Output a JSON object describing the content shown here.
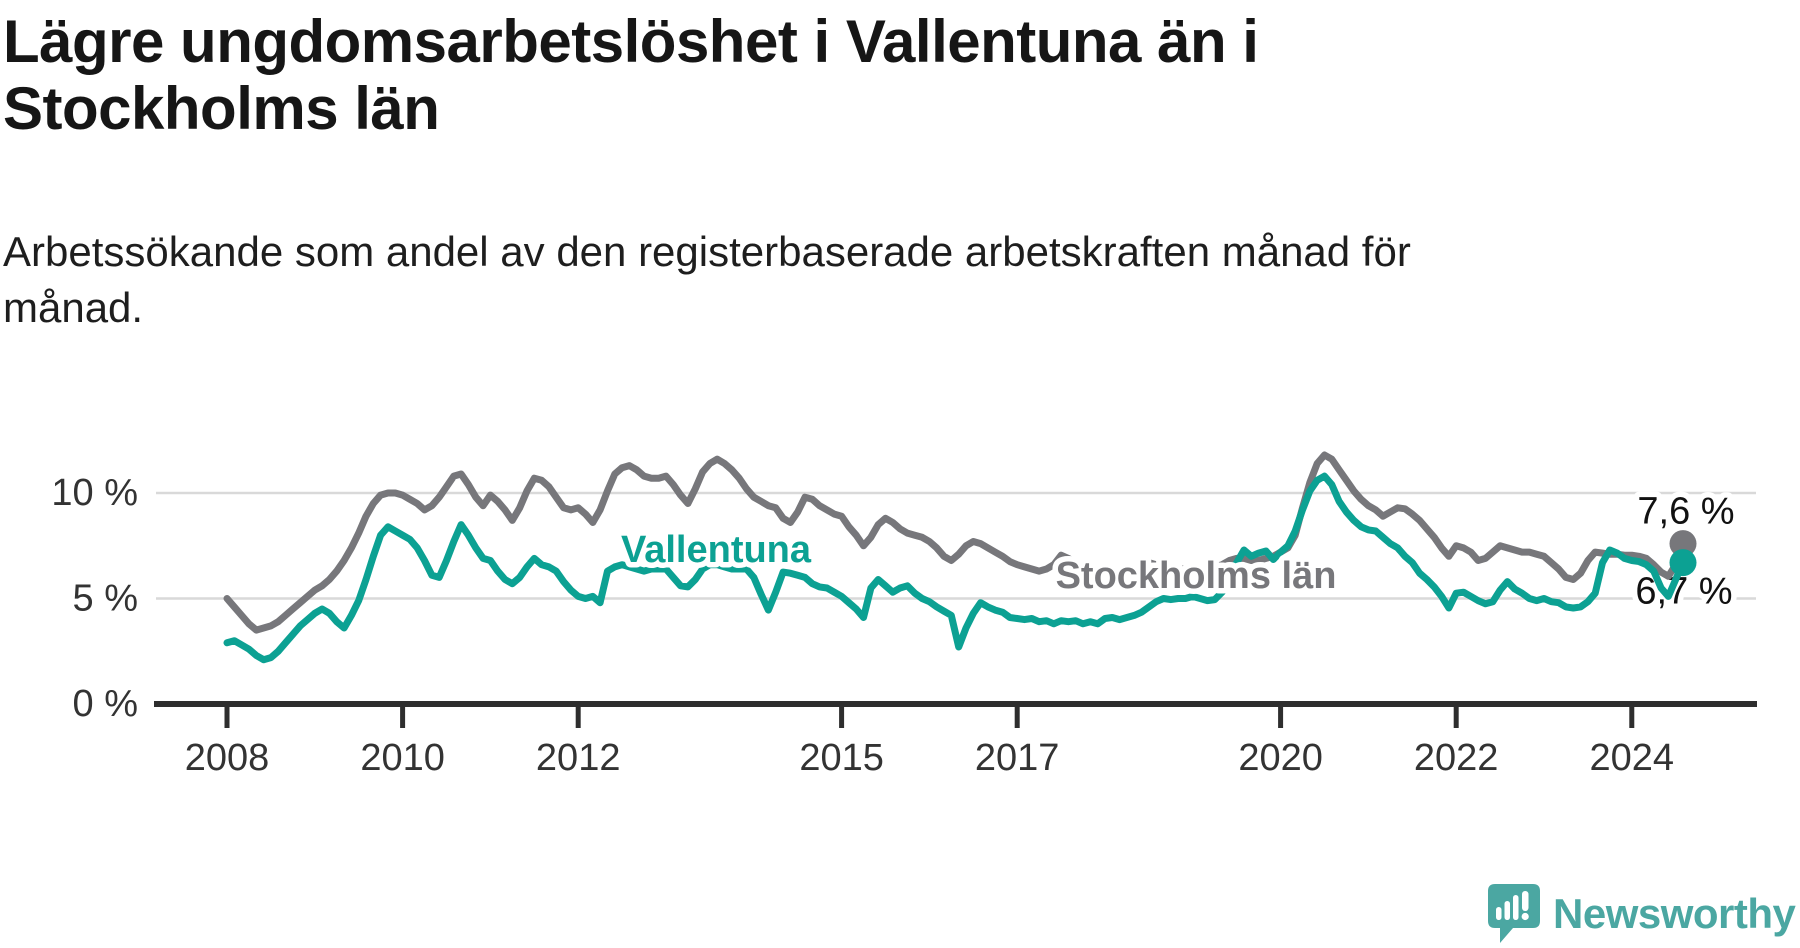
{
  "header": {
    "title": "Lägre ungdomsarbetslöshet i Vallentuna än i\nStockholms län",
    "subtitle": "Arbetssökande som andel av den registerbaserade arbetskraften månad för\nmånad."
  },
  "footer": {
    "brand": "Newsworthy"
  },
  "colors": {
    "vallentuna": "#0ca193",
    "stockholm": "#77777b",
    "gridline": "#d9d9d9",
    "axis": "#2e2e2e",
    "axis_label": "#333333",
    "value_label": "#111111",
    "logo_teal": "#4ba7a2"
  },
  "chart_data": {
    "type": "line",
    "title": "Lägre ungdomsarbetslöshet i Vallentuna än i Stockholms län",
    "subtitle": "Arbetssökande som andel av den registerbaserade arbetskraften månad för månad.",
    "unit": "%",
    "frequency": "monthly",
    "x_start": "2008-01",
    "x_end": "2024-08",
    "xlabel": "",
    "ylabel": "",
    "ylim": [
      0,
      12.5
    ],
    "grid": "horizontal",
    "legend": "inline-labels",
    "x_ticks": [
      {
        "year": 2008,
        "label": "2008"
      },
      {
        "year": 2010,
        "label": "2010"
      },
      {
        "year": 2012,
        "label": "2012"
      },
      {
        "year": 2015,
        "label": "2015"
      },
      {
        "year": 2017,
        "label": "2017"
      },
      {
        "year": 2020,
        "label": "2020"
      },
      {
        "year": 2022,
        "label": "2022"
      },
      {
        "year": 2024,
        "label": "2024"
      }
    ],
    "y_ticks": [
      {
        "value": 0,
        "label": "0 %"
      },
      {
        "value": 5,
        "label": "5 %"
      },
      {
        "value": 10,
        "label": "10 %"
      }
    ],
    "series": [
      {
        "name": "Stockholms län",
        "color": "#77777b",
        "end_value": 7.6,
        "end_label": "7,6 %",
        "end_label_position": "above",
        "values": [
          5.0,
          4.6,
          4.2,
          3.8,
          3.5,
          3.6,
          3.7,
          3.9,
          4.2,
          4.5,
          4.8,
          5.1,
          5.4,
          5.6,
          5.9,
          6.3,
          6.8,
          7.4,
          8.1,
          8.9,
          9.5,
          9.9,
          10.0,
          10.0,
          9.9,
          9.7,
          9.5,
          9.2,
          9.4,
          9.8,
          10.3,
          10.8,
          10.9,
          10.4,
          9.8,
          9.4,
          9.9,
          9.6,
          9.2,
          8.7,
          9.3,
          10.1,
          10.7,
          10.6,
          10.3,
          9.8,
          9.3,
          9.2,
          9.3,
          9.0,
          8.6,
          9.2,
          10.1,
          10.9,
          11.2,
          11.3,
          11.1,
          10.8,
          10.7,
          10.7,
          10.8,
          10.4,
          9.9,
          9.5,
          10.2,
          11.0,
          11.4,
          11.6,
          11.4,
          11.1,
          10.7,
          10.2,
          9.8,
          9.6,
          9.4,
          9.3,
          8.8,
          8.6,
          9.1,
          9.8,
          9.7,
          9.4,
          9.2,
          9.0,
          8.9,
          8.4,
          8.0,
          7.5,
          7.9,
          8.5,
          8.8,
          8.6,
          8.3,
          8.1,
          8.0,
          7.9,
          7.7,
          7.4,
          7.0,
          6.8,
          7.1,
          7.5,
          7.7,
          7.6,
          7.4,
          7.2,
          7.0,
          6.75,
          6.6,
          6.5,
          6.4,
          6.3,
          6.4,
          6.6,
          7.05,
          6.9,
          6.7,
          6.5,
          6.4,
          6.4,
          6.4,
          6.3,
          6.2,
          6.2,
          6.3,
          6.5,
          6.7,
          6.6,
          6.5,
          6.4,
          6.4,
          6.4,
          6.4,
          6.4,
          6.4,
          6.5,
          6.6,
          6.8,
          6.9,
          6.9,
          6.8,
          6.8,
          6.9,
          7.0,
          7.2,
          7.4,
          8.0,
          9.3,
          10.5,
          11.4,
          11.8,
          11.6,
          11.1,
          10.6,
          10.1,
          9.7,
          9.4,
          9.2,
          8.9,
          9.1,
          9.3,
          9.25,
          9.0,
          8.7,
          8.3,
          7.9,
          7.4,
          7.0,
          7.5,
          7.4,
          7.2,
          6.8,
          6.9,
          7.2,
          7.5,
          7.4,
          7.3,
          7.2,
          7.2,
          7.1,
          7.0,
          6.7,
          6.4,
          6.0,
          5.9,
          6.2,
          6.8,
          7.2,
          7.15,
          7.1,
          7.1,
          7.05,
          7.05,
          7.0,
          6.9,
          6.6,
          6.25,
          6.05,
          6.6,
          7.6
        ]
      },
      {
        "name": "Vallentuna",
        "color": "#0ca193",
        "end_value": 6.7,
        "end_label": "6,7 %",
        "end_label_position": "below",
        "values": [
          2.9,
          3.0,
          2.8,
          2.6,
          2.3,
          2.1,
          2.2,
          2.5,
          2.9,
          3.3,
          3.7,
          4.0,
          4.3,
          4.5,
          4.3,
          3.9,
          3.6,
          4.2,
          4.9,
          5.9,
          7.0,
          8.0,
          8.4,
          8.2,
          8.0,
          7.8,
          7.4,
          6.8,
          6.1,
          6.0,
          6.8,
          7.7,
          8.5,
          8.0,
          7.4,
          6.9,
          6.8,
          6.3,
          5.9,
          5.7,
          6.0,
          6.5,
          6.9,
          6.6,
          6.5,
          6.3,
          5.8,
          5.4,
          5.1,
          5.0,
          5.1,
          4.8,
          6.3,
          6.5,
          6.6,
          6.5,
          6.4,
          6.3,
          6.4,
          6.4,
          6.4,
          6.0,
          5.6,
          5.55,
          5.9,
          6.4,
          6.6,
          6.6,
          6.5,
          6.4,
          6.4,
          6.4,
          6.0,
          5.2,
          4.45,
          5.3,
          6.25,
          6.2,
          6.1,
          6.0,
          5.7,
          5.55,
          5.5,
          5.3,
          5.1,
          4.8,
          4.5,
          4.1,
          5.5,
          5.9,
          5.6,
          5.3,
          5.5,
          5.6,
          5.25,
          5.0,
          4.85,
          4.6,
          4.4,
          4.2,
          2.7,
          3.6,
          4.3,
          4.8,
          4.6,
          4.45,
          4.35,
          4.1,
          4.05,
          4.0,
          4.05,
          3.9,
          3.95,
          3.8,
          3.95,
          3.9,
          3.95,
          3.8,
          3.9,
          3.8,
          4.05,
          4.1,
          4.0,
          4.1,
          4.2,
          4.35,
          4.6,
          4.85,
          5.0,
          4.95,
          5.0,
          5.0,
          5.1,
          5.0,
          4.9,
          4.95,
          5.3,
          6.2,
          6.7,
          7.3,
          7.0,
          7.15,
          7.25,
          6.85,
          7.2,
          7.5,
          8.2,
          9.2,
          10.1,
          10.6,
          10.8,
          10.4,
          9.6,
          9.1,
          8.7,
          8.4,
          8.25,
          8.2,
          7.9,
          7.6,
          7.4,
          7.0,
          6.7,
          6.2,
          5.9,
          5.55,
          5.1,
          4.55,
          5.25,
          5.3,
          5.1,
          4.9,
          4.75,
          4.85,
          5.4,
          5.8,
          5.45,
          5.25,
          5.0,
          4.9,
          5.0,
          4.85,
          4.8,
          4.6,
          4.55,
          4.6,
          4.85,
          5.25,
          6.7,
          7.3,
          7.15,
          6.9,
          6.8,
          6.75,
          6.6,
          6.3,
          5.5,
          5.1,
          5.9,
          6.7
        ]
      }
    ]
  }
}
